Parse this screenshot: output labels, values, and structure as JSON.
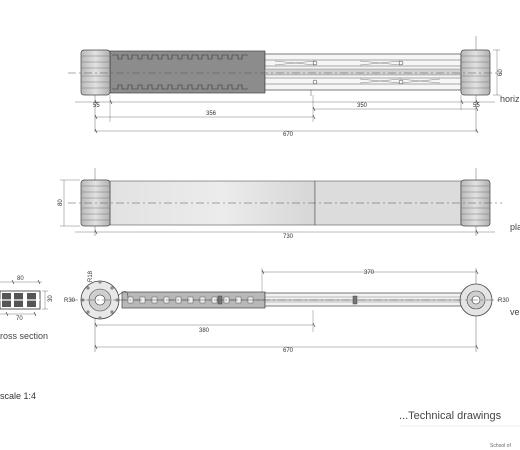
{
  "labels": {
    "horizontal": "horiz",
    "plan": "pla",
    "vertical": "ve",
    "cross_section": "ross section",
    "scale": "scale 1:4",
    "title": "...Technical drawings",
    "school": "School of"
  },
  "dims": {
    "top_55_left": "55",
    "top_356": "356",
    "top_350": "350",
    "top_55_right": "55",
    "top_60": "60",
    "top_670": "670",
    "mid_80": "80",
    "mid_730": "730",
    "cs_80": "80",
    "cs_30": "30",
    "cs_70": "70",
    "bot_r18": "R18",
    "bot_r30_left": "R30",
    "bot_370": "370",
    "bot_r30_right": "R30",
    "bot_380": "380",
    "bot_670": "670"
  },
  "colors": {
    "line": "#444444",
    "fill_dark": "#8a8a8a",
    "fill_light": "#e4e4e4",
    "cap": "#cccccc"
  }
}
